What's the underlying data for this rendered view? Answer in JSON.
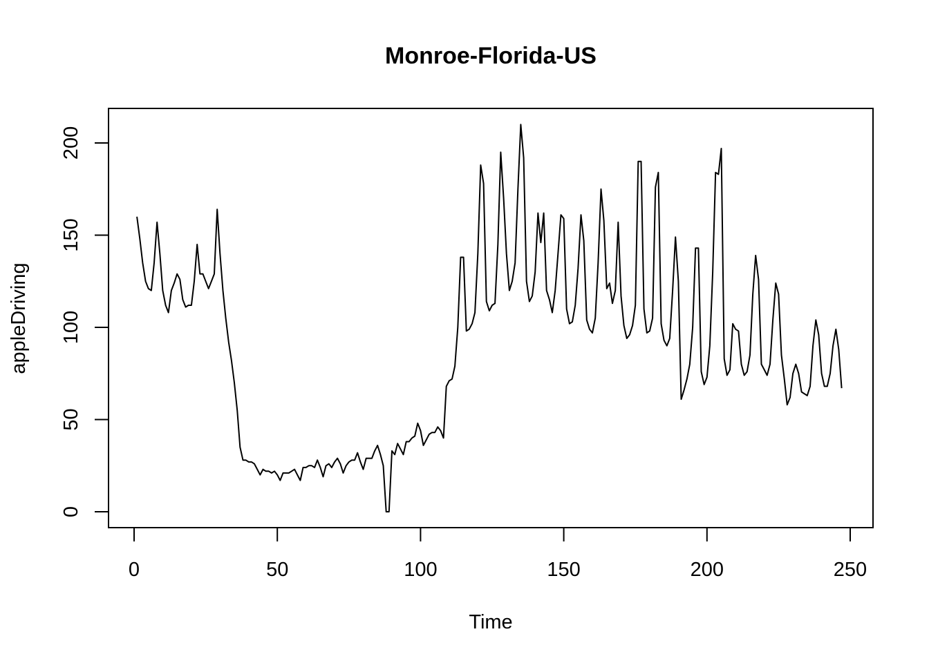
{
  "chart_data": {
    "type": "line",
    "title": "Monroe-Florida-US",
    "xlabel": "Time",
    "ylabel": "appleDriving",
    "xlim": [
      0,
      250
    ],
    "ylim": [
      0,
      210
    ],
    "xticks": [
      0,
      50,
      100,
      150,
      200,
      250
    ],
    "yticks": [
      0,
      50,
      100,
      150,
      200
    ],
    "grid": false,
    "x_start": 1,
    "series": [
      {
        "values": [
          160,
          148,
          135,
          125,
          121,
          120,
          135,
          157,
          140,
          120,
          112,
          108,
          120,
          124,
          129,
          126,
          115,
          111,
          112,
          112,
          125,
          145,
          129,
          129,
          125,
          121,
          125,
          129,
          164,
          140,
          120,
          105,
          92,
          82,
          70,
          55,
          35,
          28,
          28,
          27,
          27,
          26,
          23,
          20,
          23,
          22,
          22,
          21,
          22,
          20,
          17,
          21,
          21,
          21,
          22,
          23,
          20,
          17,
          24,
          24,
          25,
          25,
          24,
          28,
          24,
          19,
          25,
          26,
          24,
          27,
          29,
          26,
          21,
          25,
          27,
          28,
          28,
          32,
          27,
          23,
          29,
          29,
          29,
          33,
          36,
          31,
          25,
          0,
          0,
          33,
          31,
          37,
          34,
          31,
          38,
          38,
          40,
          41,
          48,
          44,
          36,
          39,
          42,
          43,
          43,
          46,
          44,
          40,
          68,
          71,
          72,
          79,
          100,
          138,
          138,
          98,
          99,
          102,
          108,
          140,
          188,
          178,
          114,
          109,
          112,
          113,
          145,
          195,
          170,
          140,
          120,
          125,
          135,
          175,
          210,
          192,
          125,
          114,
          117,
          130,
          162,
          146,
          162,
          120,
          115,
          108,
          120,
          140,
          161,
          159,
          110,
          102,
          103,
          112,
          132,
          161,
          147,
          104,
          99,
          97,
          105,
          135,
          175,
          158,
          121,
          124,
          113,
          120,
          157,
          117,
          101,
          94,
          96,
          101,
          112,
          190,
          190,
          110,
          97,
          98,
          105,
          176,
          184,
          102,
          93,
          90,
          94,
          120,
          149,
          125,
          61,
          66,
          72,
          80,
          100,
          143,
          143,
          76,
          69,
          73,
          90,
          130,
          184,
          183,
          197,
          83,
          74,
          77,
          102,
          99,
          98,
          80,
          74,
          76,
          85,
          118,
          139,
          126,
          80,
          77,
          74,
          80,
          104,
          124,
          118,
          85,
          72,
          58,
          62,
          75,
          80,
          75,
          65,
          64,
          63,
          68,
          90,
          104,
          96,
          75,
          68,
          68,
          75,
          90,
          99,
          88,
          67
        ]
      }
    ]
  }
}
